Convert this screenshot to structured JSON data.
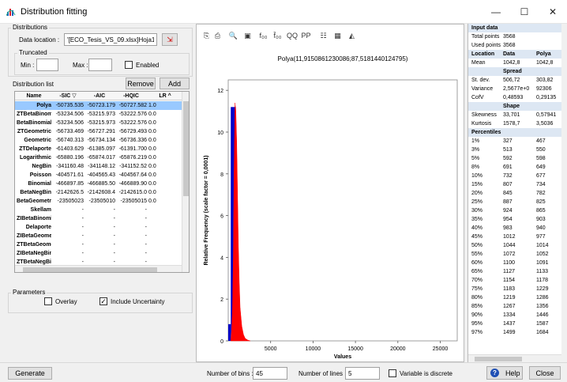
{
  "window": {
    "title": "Distribution fitting",
    "minimize": "—",
    "maximize": "☐",
    "close": "✕"
  },
  "distributions": {
    "group_label": "Distributions",
    "data_location_label": "Data location :",
    "data_location_value": "'[ECO_Tesis_VS_09.xlsx]Hoja1'",
    "truncated_label": "Truncated",
    "min_label": "Min :",
    "max_label": "Max :",
    "enabled_label": "Enabled"
  },
  "list": {
    "label": "Distribution list",
    "remove_label": "Remove",
    "add_label": "Add",
    "columns": [
      "Name",
      "-SIC ▽",
      "-AIC",
      "-HQIC",
      "LR ^"
    ],
    "rows": [
      [
        "Polya",
        "-50735.535",
        "-50723.179",
        "-50727.582",
        "1.0"
      ],
      [
        "ZTBetaBinomi",
        "-53234.506",
        "-53215.973",
        "-53222.576",
        "0.0"
      ],
      [
        "BetaBinomial",
        "-53234.506",
        "-53215.973",
        "-53222.576",
        "0.0"
      ],
      [
        "ZTGeometric",
        "-56733.469",
        "-56727.291",
        "-56729.493",
        "0.0"
      ],
      [
        "Geometric",
        "-56740.313",
        "-56734.134",
        "-56736.336",
        "0.0"
      ],
      [
        "ZTDelaporte",
        "-61403.629",
        "-61385.097",
        "-61391.700",
        "0.0"
      ],
      [
        "Logarithmic",
        "-65880.196",
        "-65874.017",
        "-65876.219",
        "0.0"
      ],
      [
        "NegBin",
        "-341160.48",
        "-341148.12",
        "-341152.52",
        "0.0"
      ],
      [
        "Poisson",
        "-404571.61",
        "-404565.43",
        "-404567.64",
        "0.0"
      ],
      [
        "Binomial",
        "-466897.85",
        "-466885.50",
        "-466889.90",
        "0.0"
      ],
      [
        "BetaNegBin",
        "-2142626.5",
        "-2142608.4",
        "-2142615.0",
        "0.0"
      ],
      [
        "BetaGeometri",
        "-23505023",
        "-23505010",
        "-23505015",
        "0.0"
      ],
      [
        "Skellam",
        "-",
        "-",
        "-",
        ""
      ],
      [
        "ZIBetaBinomia",
        "-",
        "-",
        "-",
        ""
      ],
      [
        "Delaporte",
        "-",
        "-",
        "-",
        ""
      ],
      [
        "ZIBetaGeomet",
        "-",
        "-",
        "-",
        ""
      ],
      [
        "ZTBetaGeome",
        "-",
        "-",
        "-",
        ""
      ],
      [
        "ZIBetaNegBin",
        "-",
        "-",
        "-",
        ""
      ],
      [
        "ZTBetaNegBin",
        "-",
        "-",
        "-",
        ""
      ]
    ]
  },
  "parameters": {
    "group_label": "Parameters",
    "overlay_label": "Overlay",
    "overlay_checked": false,
    "include_uncertainty_label": "Include Uncertainty",
    "include_uncertainty_checked": true
  },
  "toolbar": {
    "icons": [
      "copy-icon",
      "print-icon",
      "zoom-icon",
      "chart-type-icon",
      "f00-icon",
      "f00-variant-icon",
      "qq-plot-icon",
      "pp-plot-icon",
      "legend-icon",
      "export-icon",
      "fit-icon"
    ],
    "glyphs": [
      "⎘",
      "⎙",
      "🔍",
      "▣",
      "f₀₀",
      "f̄₀₀",
      "QQ",
      "PP",
      "☷",
      "▦",
      "◭"
    ]
  },
  "chart_data": {
    "type": "bar",
    "title": "Polya(11,9150861230086;87,5181440124795)",
    "xlabel": "Values",
    "ylabel": "Relative Frequency (scale factor = 0,0001)",
    "xlim": [
      0,
      27000
    ],
    "ylim": [
      0,
      12.5
    ],
    "x_ticks": [
      "5000",
      "10000",
      "15000",
      "20000",
      "25000"
    ],
    "y_ticks": [
      "0",
      "2",
      "4",
      "6",
      "8",
      "10",
      "12"
    ],
    "series": [
      {
        "values": [
          0.8,
          11.2,
          11.2,
          0.4
        ],
        "color": "#0000c8"
      }
    ],
    "bin_edges": [
      0,
      300,
      600,
      900,
      1200
    ],
    "fitted_curve": {
      "x": [
        300,
        400,
        500,
        600,
        700,
        800,
        900,
        1000,
        1100,
        1200,
        1300,
        1400,
        1600,
        1800,
        2000,
        2300,
        2600
      ],
      "y": [
        0,
        0.5,
        1.5,
        4.0,
        8.5,
        11.4,
        11.0,
        9.5,
        7.0,
        4.5,
        2.8,
        1.6,
        0.7,
        0.3,
        0.12,
        0.04,
        0
      ],
      "color": "#ff0000"
    }
  },
  "stats": {
    "input_data_label": "Input data",
    "total_points_label": "Total points",
    "total_points": "3568",
    "used_points_label": "Used points",
    "used_points": "3568",
    "location_head": [
      "Location",
      "Data",
      "Polya"
    ],
    "mean_label": "Mean",
    "mean": [
      "1042,8",
      "1042,8"
    ],
    "spread_label": "Spread",
    "spread_rows": [
      [
        "St. dev.",
        "506,72",
        "303,82"
      ],
      [
        "Variance",
        "2,5677e+0",
        "92306"
      ],
      [
        "CofV",
        "0,48593",
        "0,29135"
      ]
    ],
    "shape_label": "Shape",
    "shape_rows": [
      [
        "Skewness",
        "33,701",
        "0,57941"
      ],
      [
        "Kurtosis",
        "1578,7",
        "3,5036"
      ]
    ],
    "percentiles_label": "Percentiles",
    "percentile_rows": [
      [
        "1%",
        "327",
        "467"
      ],
      [
        "3%",
        "513",
        "550"
      ],
      [
        "5%",
        "592",
        "598"
      ],
      [
        "8%",
        "691",
        "649"
      ],
      [
        "10%",
        "732",
        "677"
      ],
      [
        "15%",
        "807",
        "734"
      ],
      [
        "20%",
        "845",
        "782"
      ],
      [
        "25%",
        "887",
        "825"
      ],
      [
        "30%",
        "924",
        "865"
      ],
      [
        "35%",
        "954",
        "903"
      ],
      [
        "40%",
        "983",
        "940"
      ],
      [
        "45%",
        "1012",
        "977"
      ],
      [
        "50%",
        "1044",
        "1014"
      ],
      [
        "55%",
        "1072",
        "1052"
      ],
      [
        "60%",
        "1100",
        "1091"
      ],
      [
        "65%",
        "1127",
        "1133"
      ],
      [
        "70%",
        "1154",
        "1178"
      ],
      [
        "75%",
        "1183",
        "1229"
      ],
      [
        "80%",
        "1219",
        "1286"
      ],
      [
        "85%",
        "1267",
        "1356"
      ],
      [
        "90%",
        "1334",
        "1446"
      ],
      [
        "95%",
        "1437",
        "1587"
      ],
      [
        "97%",
        "1499",
        "1684"
      ]
    ]
  },
  "bottom": {
    "generate_label": "Generate",
    "bins_label": "Number of bins :",
    "bins_value": "45",
    "lines_label": "Number of lines :",
    "lines_value": "5",
    "discrete_label": "Variable is discrete",
    "help_label": "Help",
    "close_label": "Close"
  }
}
